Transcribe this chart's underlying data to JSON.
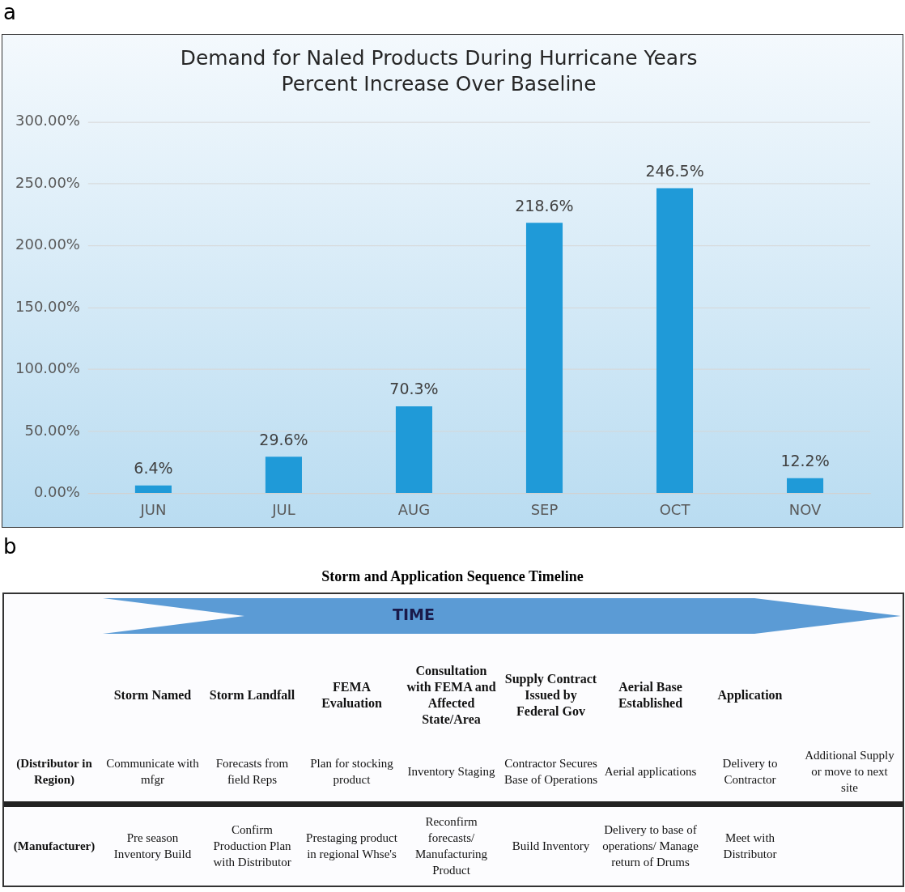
{
  "chart_data": [
    {
      "type": "bar",
      "title": "Demand for Naled Products During Hurricane Years",
      "subtitle": "Percent Increase Over Baseline",
      "annotations": [
        "a"
      ],
      "categories": [
        "JUN",
        "JUL",
        "AUG",
        "SEP",
        "OCT",
        "NOV"
      ],
      "values": [
        6.4,
        29.6,
        70.3,
        218.6,
        246.5,
        12.2
      ],
      "value_labels": [
        "6.4%",
        "29.6%",
        "70.3%",
        "218.6%",
        "246.5%",
        "12.2%"
      ],
      "color": "#1f9ad8",
      "ylim": [
        0,
        300
      ],
      "yticks": [
        {
          "value": 0,
          "label": "0.00%"
        },
        {
          "value": 50,
          "label": "50.00%"
        },
        {
          "value": 100,
          "label": "100.00%"
        },
        {
          "value": 150,
          "label": "150.00%"
        },
        {
          "value": 200,
          "label": "200.00%"
        },
        {
          "value": 250,
          "label": "250.00%"
        },
        {
          "value": 300,
          "label": "300.00%"
        }
      ],
      "grid": "y"
    },
    {
      "type": "other",
      "title": "Storm and Application Sequence Timeline",
      "annotations": [
        "b",
        "TIME",
        "Storm Named",
        "Storm Landfall",
        "FEMA Evaluation",
        "Consultation with FEMA and Affected State/Area",
        "Supply Contract Issued by Federal Gov",
        "Aerial Base Established",
        "Application",
        "(Distributor in Region)",
        "Communicate with mfgr",
        "Forecasts from field Reps",
        "Plan for stocking product",
        "Inventory Staging",
        "Contractor Secures Base of Operations",
        "Aerial applications",
        "Delivery to Contractor",
        "Additional Supply or move to next site",
        "(Manufacturer)",
        "Pre season Inventory Build",
        "Confirm Production Plan with Distributor",
        "Prestaging product in regional Whse's",
        "Reconfirm forecasts/ Manufacturing Product",
        "Build Inventory",
        "Delivery to base of operations/ Manage return of Drums",
        "Meet with Distributor"
      ]
    }
  ]
}
